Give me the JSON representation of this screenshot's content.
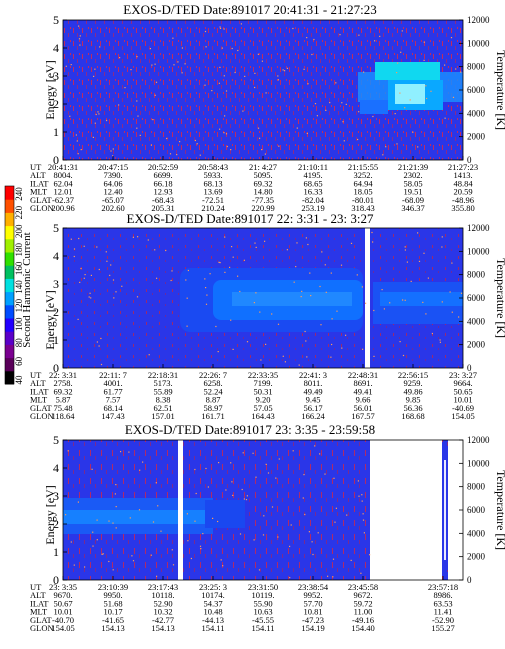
{
  "colorbar": {
    "label": "Second Harmonic Current",
    "ticks": [
      "40",
      "60",
      "80",
      "100",
      "120",
      "140",
      "160",
      "180",
      "200",
      "220",
      "240"
    ],
    "colors": [
      "#000000",
      "#5a005a",
      "#7a0090",
      "#5a00c8",
      "#2200ff",
      "#004cff",
      "#00a0ff",
      "#00e0e0",
      "#00c060",
      "#30e000",
      "#a0f000",
      "#ffff00",
      "#ffb000",
      "#ff5000",
      "#ff0000"
    ]
  },
  "chart_data": [
    {
      "type": "heatmap",
      "title": "EXOS-D/TED   Date:891017  20:41:31 - 21:27:23",
      "ylabel": "Energy [eV]",
      "y2label": "Temperature [K]",
      "ylim": [
        0,
        5
      ],
      "y2lim": [
        0,
        12000
      ],
      "yticks": [
        "0",
        "1",
        "2",
        "3",
        "4",
        "5"
      ],
      "y2ticks": [
        "0",
        "2000",
        "4000",
        "6000",
        "8000",
        "10000",
        "12000"
      ],
      "rows": [
        {
          "name": "UT",
          "values": [
            "20:41:31",
            "20:47:15",
            "20:52:59",
            "20:58:43",
            "21: 4:27",
            "21:10:11",
            "21:15:55",
            "21:21:39",
            "21:27:23"
          ]
        },
        {
          "name": "ALT",
          "values": [
            "8004.",
            "7390.",
            "6699.",
            "5933.",
            "5095.",
            "4195.",
            "3252.",
            "2302.",
            "1413."
          ]
        },
        {
          "name": "ILAT",
          "values": [
            "62.04",
            "64.06",
            "66.18",
            "68.13",
            "69.32",
            "68.65",
            "64.94",
            "58.05",
            "48.84"
          ]
        },
        {
          "name": "MLT",
          "values": [
            "12.01",
            "12.40",
            "12.93",
            "13.69",
            "14.80",
            "16.33",
            "18.05",
            "19.51",
            "20.59"
          ]
        },
        {
          "name": "GLAT",
          "values": [
            "-62.37",
            "-65.07",
            "-68.43",
            "-72.51",
            "-77.35",
            "-82.04",
            "-80.01",
            "-68.09",
            "-48.96"
          ]
        },
        {
          "name": "GLON",
          "values": [
            "200.96",
            "202.60",
            "205.31",
            "210.24",
            "220.99",
            "253.19",
            "318.43",
            "346.37",
            "355.80"
          ]
        }
      ]
    },
    {
      "type": "heatmap",
      "title": "EXOS-D/TED   Date:891017  22: 3:31 - 23: 3:27",
      "ylabel": "Energy [eV]",
      "y2label": "Temperature [K]",
      "ylim": [
        0,
        5
      ],
      "y2lim": [
        0,
        12000
      ],
      "yticks": [
        "0",
        "1",
        "2",
        "3",
        "4",
        "5"
      ],
      "y2ticks": [
        "0",
        "2000",
        "4000",
        "6000",
        "8000",
        "10000",
        "12000"
      ],
      "rows": [
        {
          "name": "UT",
          "values": [
            "22: 3:31",
            "22:11: 7",
            "22:18:31",
            "22:26: 7",
            "22:33:35",
            "22:41: 3",
            "22:48:31",
            "22:56:15",
            "23: 3:27"
          ]
        },
        {
          "name": "ALT",
          "values": [
            "2758.",
            "4001.",
            "5173.",
            "6258.",
            "7199.",
            "8011.",
            "8691.",
            "9259.",
            "9664."
          ]
        },
        {
          "name": "ILAT",
          "values": [
            "69.32",
            "61.77",
            "55.89",
            "52.24",
            "50.31",
            "49.49",
            "49.41",
            "49.86",
            "50.65"
          ]
        },
        {
          "name": "MLT",
          "values": [
            "5.87",
            "7.57",
            "8.38",
            "8.87",
            "9.20",
            "9.45",
            "9.66",
            "9.85",
            "10.01"
          ]
        },
        {
          "name": "GLAT",
          "values": [
            "75.48",
            "68.14",
            "62.51",
            "58.97",
            "57.05",
            "56.17",
            "56.01",
            "56.36",
            "-40.69"
          ]
        },
        {
          "name": "GLON",
          "values": [
            "118.64",
            "147.43",
            "157.01",
            "161.71",
            "164.43",
            "166.24",
            "167.57",
            "168.68",
            "154.05"
          ]
        }
      ]
    },
    {
      "type": "heatmap",
      "title": "EXOS-D/TED   Date:891017  23: 3:35 - 23:59:58",
      "ylabel": "Energy [eV]",
      "y2label": "Temperature [K]",
      "ylim": [
        0,
        5
      ],
      "y2lim": [
        0,
        12000
      ],
      "yticks": [
        "0",
        "1",
        "2",
        "3",
        "4",
        "5"
      ],
      "y2ticks": [
        "0",
        "2000",
        "4000",
        "6000",
        "8000",
        "10000",
        "12000"
      ],
      "rows": [
        {
          "name": "UT",
          "values": [
            "23: 3:35",
            "23:10:39",
            "23:17:43",
            "23:25: 3",
            "23:31:50",
            "23:38:54",
            "23:45:58",
            "",
            "23:57:18"
          ]
        },
        {
          "name": "ALT",
          "values": [
            "9670.",
            "9950.",
            "10118.",
            "10174.",
            "10119.",
            "9952.",
            "9672.",
            "",
            "8986."
          ]
        },
        {
          "name": "ILAT",
          "values": [
            "50.67",
            "51.68",
            "52.90",
            "54.37",
            "55.90",
            "57.70",
            "59.72",
            "",
            "63.53"
          ]
        },
        {
          "name": "MLT",
          "values": [
            "10.01",
            "10.17",
            "10.32",
            "10.48",
            "10.63",
            "10.81",
            "11.00",
            "",
            "11.41"
          ]
        },
        {
          "name": "GLAT",
          "values": [
            "-40.70",
            "-41.65",
            "-42.77",
            "-44.13",
            "-45.55",
            "-47.23",
            "-49.16",
            "",
            "-52.90"
          ]
        },
        {
          "name": "GLON",
          "values": [
            "154.05",
            "154.13",
            "154.13",
            "154.11",
            "154.11",
            "154.19",
            "154.40",
            "",
            "155.27"
          ]
        }
      ]
    }
  ]
}
